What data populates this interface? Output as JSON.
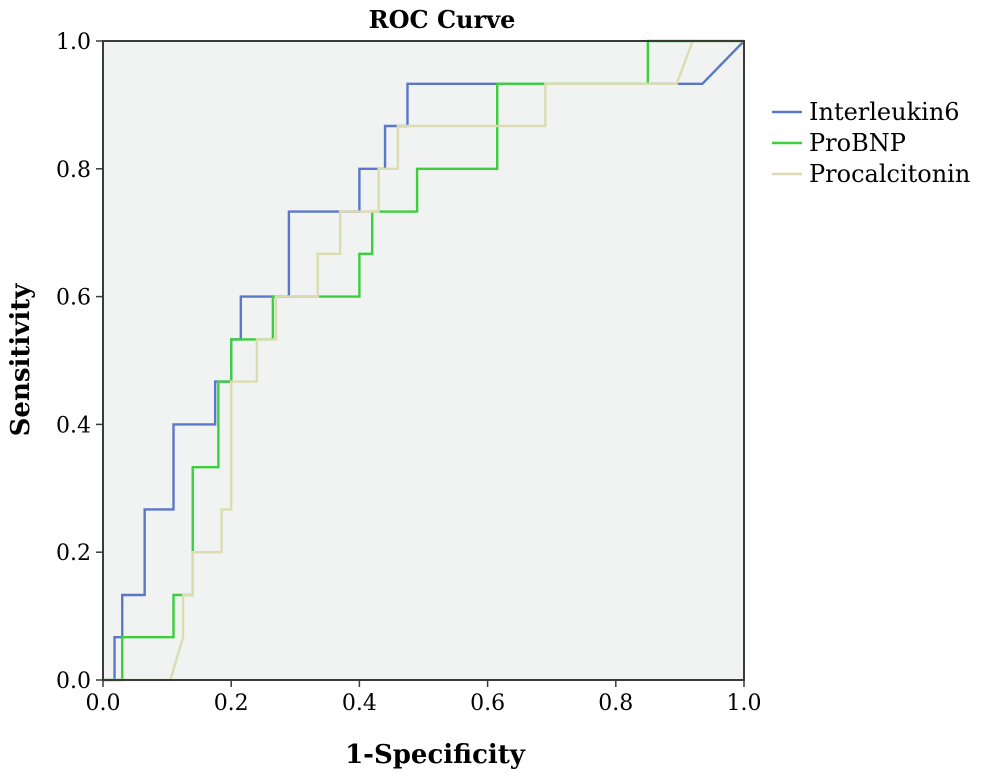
{
  "chart_data": {
    "type": "line",
    "title": "ROC Curve",
    "xlabel": "1-Specificity",
    "ylabel": "Sensitivity",
    "xlim": [
      0,
      1
    ],
    "ylim": [
      0,
      1
    ],
    "xticks": [
      "0.0",
      "0.2",
      "0.4",
      "0.6",
      "0.8",
      "1.0"
    ],
    "yticks": [
      "0.0",
      "0.2",
      "0.4",
      "0.6",
      "0.8",
      "1.0"
    ],
    "plot_background": "#f0f3f2",
    "grid": false,
    "legend_position": "right",
    "series": [
      {
        "name": "Interleukin6",
        "color": "#5b78c7",
        "x": [
          0.0,
          0.018,
          0.018,
          0.03,
          0.03,
          0.065,
          0.065,
          0.11,
          0.11,
          0.175,
          0.175,
          0.2,
          0.2,
          0.215,
          0.215,
          0.29,
          0.29,
          0.4,
          0.4,
          0.44,
          0.44,
          0.475,
          0.475,
          0.935,
          0.935,
          1.0
        ],
        "y": [
          0.0,
          0.0,
          0.067,
          0.067,
          0.133,
          0.133,
          0.267,
          0.267,
          0.4,
          0.4,
          0.467,
          0.467,
          0.533,
          0.533,
          0.6,
          0.6,
          0.733,
          0.733,
          0.8,
          0.8,
          0.867,
          0.867,
          0.933,
          0.933,
          0.933,
          1.0
        ]
      },
      {
        "name": "ProBNP",
        "color": "#3ccf3c",
        "x": [
          0.0,
          0.03,
          0.03,
          0.11,
          0.11,
          0.14,
          0.14,
          0.18,
          0.18,
          0.2,
          0.2,
          0.265,
          0.265,
          0.4,
          0.4,
          0.42,
          0.42,
          0.49,
          0.49,
          0.615,
          0.615,
          0.85,
          0.85,
          1.0
        ],
        "y": [
          0.0,
          0.0,
          0.067,
          0.067,
          0.133,
          0.133,
          0.333,
          0.333,
          0.467,
          0.467,
          0.533,
          0.533,
          0.6,
          0.6,
          0.667,
          0.667,
          0.733,
          0.733,
          0.8,
          0.8,
          0.933,
          0.933,
          1.0,
          1.0
        ]
      },
      {
        "name": "Procalcitonin",
        "color": "#dcdcb2",
        "x": [
          0.0,
          0.105,
          0.125,
          0.125,
          0.14,
          0.14,
          0.185,
          0.185,
          0.2,
          0.2,
          0.24,
          0.24,
          0.27,
          0.27,
          0.335,
          0.335,
          0.37,
          0.37,
          0.43,
          0.43,
          0.46,
          0.46,
          0.69,
          0.69,
          0.895,
          0.92,
          1.0
        ],
        "y": [
          0.0,
          0.0,
          0.067,
          0.133,
          0.133,
          0.2,
          0.2,
          0.267,
          0.267,
          0.467,
          0.467,
          0.533,
          0.533,
          0.6,
          0.6,
          0.667,
          0.667,
          0.733,
          0.733,
          0.8,
          0.8,
          0.867,
          0.867,
          0.933,
          0.933,
          1.0,
          1.0
        ]
      }
    ]
  }
}
